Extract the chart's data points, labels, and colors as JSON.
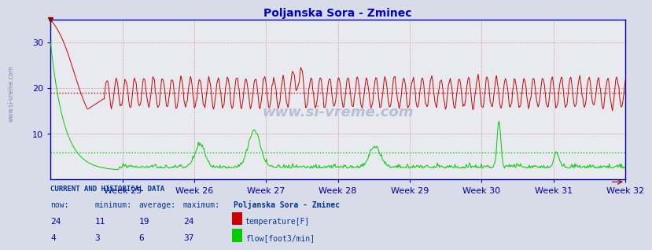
{
  "title": "Poljanska Sora - Zminec",
  "title_color": "#0000cc",
  "bg_color": "#d8dce8",
  "plot_bg_color": "#e8eaf0",
  "xlabel_color": "#0000aa",
  "yticks": [
    10,
    20,
    30
  ],
  "weeks": [
    "Week 25",
    "Week 26",
    "Week 27",
    "Week 28",
    "Week 29",
    "Week 30",
    "Week 31",
    "Week 32"
  ],
  "temp_color": "#cc0000",
  "flow_color": "#00cc00",
  "temp_avg_line": 19,
  "flow_avg_line": 6,
  "watermark": "www.si-vreme.com",
  "watermark_color": "#aaaacc",
  "sidebar_text": "www.si-vreme.com",
  "sidebar_color": "#7777aa",
  "legend_title": "Poljanska Sora - Zminec",
  "stats_temp": {
    "now": 24,
    "min": 11,
    "avg": 19,
    "max": 24
  },
  "stats_flow": {
    "now": 4,
    "min": 3,
    "avg": 6,
    "max": 37
  },
  "stats_color": "#0000aa",
  "label_color": "#003399",
  "n_points": 720
}
